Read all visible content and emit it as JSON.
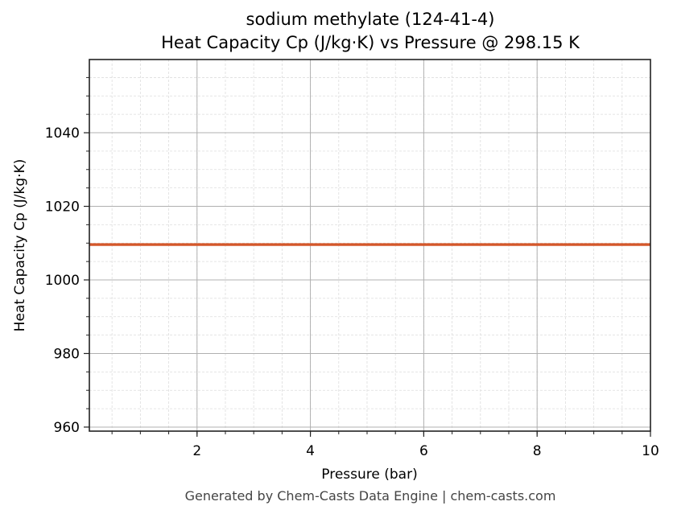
{
  "chart_data": {
    "type": "line",
    "title": "sodium methylate (124-41-4)",
    "subtitle": "Heat Capacity Cp (J/kg·K) vs Pressure @ 298.15 K",
    "xlabel": "Pressure (bar)",
    "ylabel": "Heat Capacity Cp (J/kg·K)",
    "xlim": [
      0.1,
      10
    ],
    "ylim": [
      958.9,
      1059.9
    ],
    "x_ticks": [
      2,
      4,
      6,
      8,
      10
    ],
    "y_ticks": [
      960,
      980,
      1000,
      1020,
      1040
    ],
    "grid": true,
    "minor_grid": true,
    "legend": null,
    "series": [
      {
        "name": "Cp",
        "color": "#d4572a",
        "x": [
          0.1,
          1,
          2,
          3,
          4,
          5,
          6,
          7,
          8,
          9,
          10
        ],
        "y": [
          1009.6,
          1009.6,
          1009.6,
          1009.6,
          1009.6,
          1009.6,
          1009.6,
          1009.6,
          1009.6,
          1009.6,
          1009.6
        ]
      }
    ]
  },
  "header": {
    "title": "sodium methylate (124-41-4)",
    "subtitle": "Heat Capacity Cp (J/kg·K) vs Pressure @ 298.15 K"
  },
  "axes": {
    "xlabel": "Pressure (bar)",
    "ylabel": "Heat Capacity Cp (J/kg·K)"
  },
  "footer": {
    "text": "Generated by Chem-Casts Data Engine | chem-casts.com"
  }
}
